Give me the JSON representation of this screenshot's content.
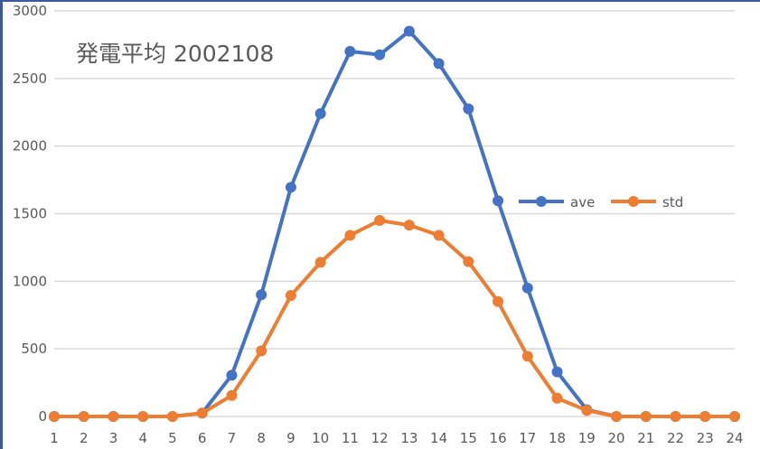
{
  "chart_data": {
    "type": "line",
    "title": "発電平均 2002108",
    "xlabel": "",
    "ylabel": "",
    "categories": [
      1,
      2,
      3,
      4,
      5,
      6,
      7,
      8,
      9,
      10,
      11,
      12,
      13,
      14,
      15,
      16,
      17,
      18,
      19,
      20,
      21,
      22,
      23,
      24
    ],
    "series": [
      {
        "name": "ave",
        "color": "#4472C4",
        "values": [
          0,
          0,
          0,
          0,
          0,
          25,
          305,
          900,
          1695,
          2240,
          2700,
          2675,
          2850,
          2610,
          2275,
          1595,
          950,
          330,
          50,
          0,
          0,
          0,
          0,
          0
        ]
      },
      {
        "name": "std",
        "color": "#ED7D31",
        "values": [
          0,
          0,
          0,
          0,
          0,
          25,
          155,
          485,
          895,
          1140,
          1340,
          1450,
          1415,
          1340,
          1145,
          850,
          445,
          135,
          45,
          0,
          0,
          0,
          0,
          0
        ]
      }
    ],
    "ylim": [
      0,
      3000
    ],
    "yticks": [
      0,
      500,
      1000,
      1500,
      2000,
      2500,
      3000
    ],
    "grid": true,
    "legend_position": "right-middle"
  },
  "labels": {
    "title": "発電平均 2002108",
    "legend": [
      {
        "name": "ave",
        "color": "#4472C4"
      },
      {
        "name": "std",
        "color": "#ED7D31"
      }
    ]
  },
  "colors": {
    "grid": "#d9d9d9",
    "text": "#595959",
    "frame": "#3a5a9a"
  }
}
